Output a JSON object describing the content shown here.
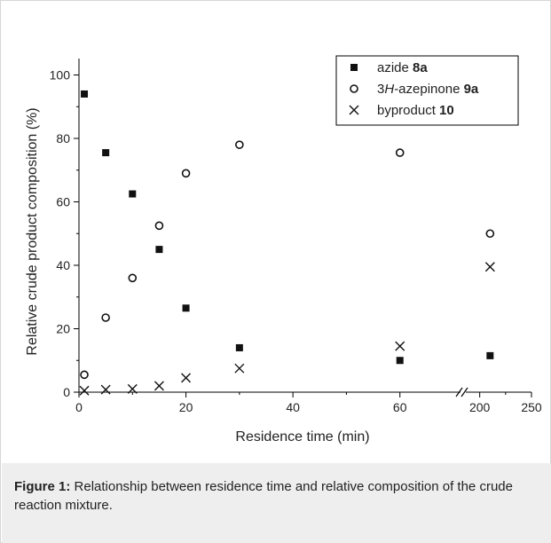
{
  "chart_data": {
    "type": "scatter",
    "title": "",
    "xlabel": "Residence time (min)",
    "ylabel": "Relative crude product composition (%)",
    "xlim_main": [
      0,
      70
    ],
    "xlim_break": [
      190,
      250
    ],
    "ylim": [
      0,
      105
    ],
    "x_ticks_main": [
      "0",
      "20",
      "40",
      "60"
    ],
    "x_ticks_break": [
      "200",
      "250"
    ],
    "y_ticks": [
      "0",
      "20",
      "40",
      "60",
      "80",
      "100"
    ],
    "axis_break": true,
    "grid": false,
    "legend_position": "top-right",
    "series": [
      {
        "name": "azide",
        "name_bold": "8a",
        "marker": "square",
        "x": [
          1,
          5,
          10,
          15,
          20,
          30,
          60,
          210
        ],
        "y": [
          94,
          75.5,
          62.5,
          45,
          26.5,
          14,
          10,
          11.5
        ]
      },
      {
        "name": "3H-azepinone",
        "name_italic": "H",
        "name_bold": "9a",
        "marker": "circle",
        "x": [
          1,
          5,
          10,
          15,
          20,
          30,
          60,
          210
        ],
        "y": [
          5.5,
          23.5,
          36,
          52.5,
          69,
          78,
          75.5,
          50
        ]
      },
      {
        "name": "byproduct",
        "name_bold": "10",
        "marker": "cross",
        "x": [
          1,
          5,
          10,
          15,
          20,
          30,
          60,
          210
        ],
        "y": [
          0.5,
          0.8,
          1,
          2,
          4.5,
          7.5,
          14.5,
          39.5
        ]
      }
    ]
  },
  "caption": {
    "label": "Figure 1:",
    "text": "Relationship between residence time and relative composition of the crude reaction mixture."
  }
}
